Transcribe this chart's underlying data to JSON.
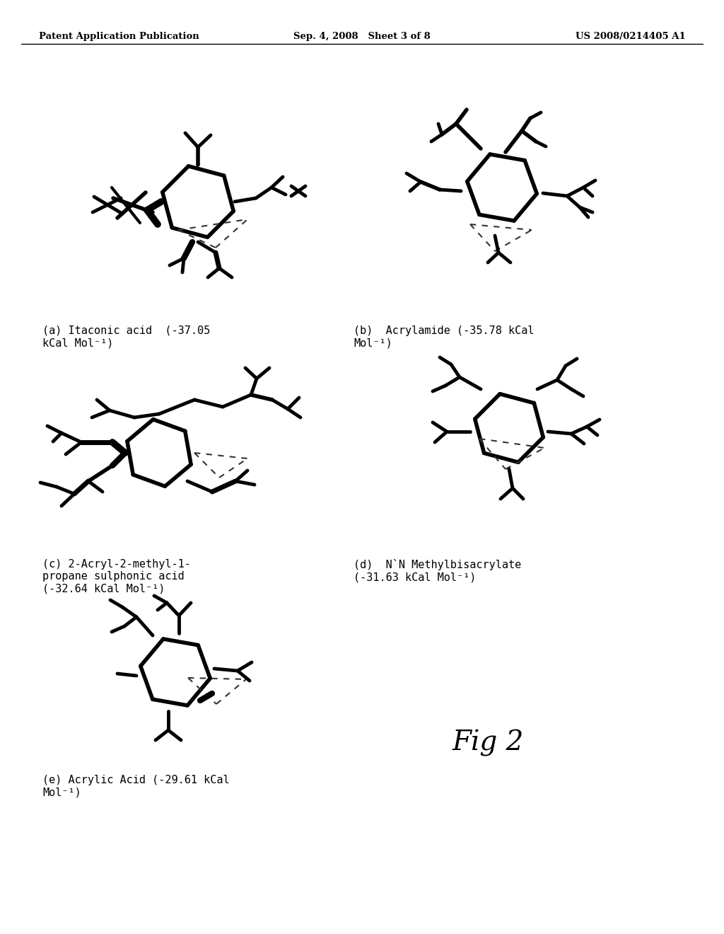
{
  "page_header": {
    "left": "Patent Application Publication",
    "center": "Sep. 4, 2008   Sheet 3 of 8",
    "right": "US 2008/0214405 A1"
  },
  "figure_label": "Fig 2",
  "label_a": "(a) Itaconic acid  (-37.05\nkCal Mol⁻¹)",
  "label_b": "(b)  Acrylamide (-35.78 kCal\nMol⁻¹)",
  "label_c": "(c) 2-Acryl-2-methyl-1-\npropane sulphonic acid\n(-32.64 kCal Mol⁻¹)",
  "label_d": "(d)  N`N Methylbisacrylate\n(-31.63 kCal Mol⁻¹)",
  "label_e": "(e) Acrylic Acid (-29.61 kCal\nMol⁻¹)",
  "background": "#ffffff",
  "molecule_color": "#000000"
}
